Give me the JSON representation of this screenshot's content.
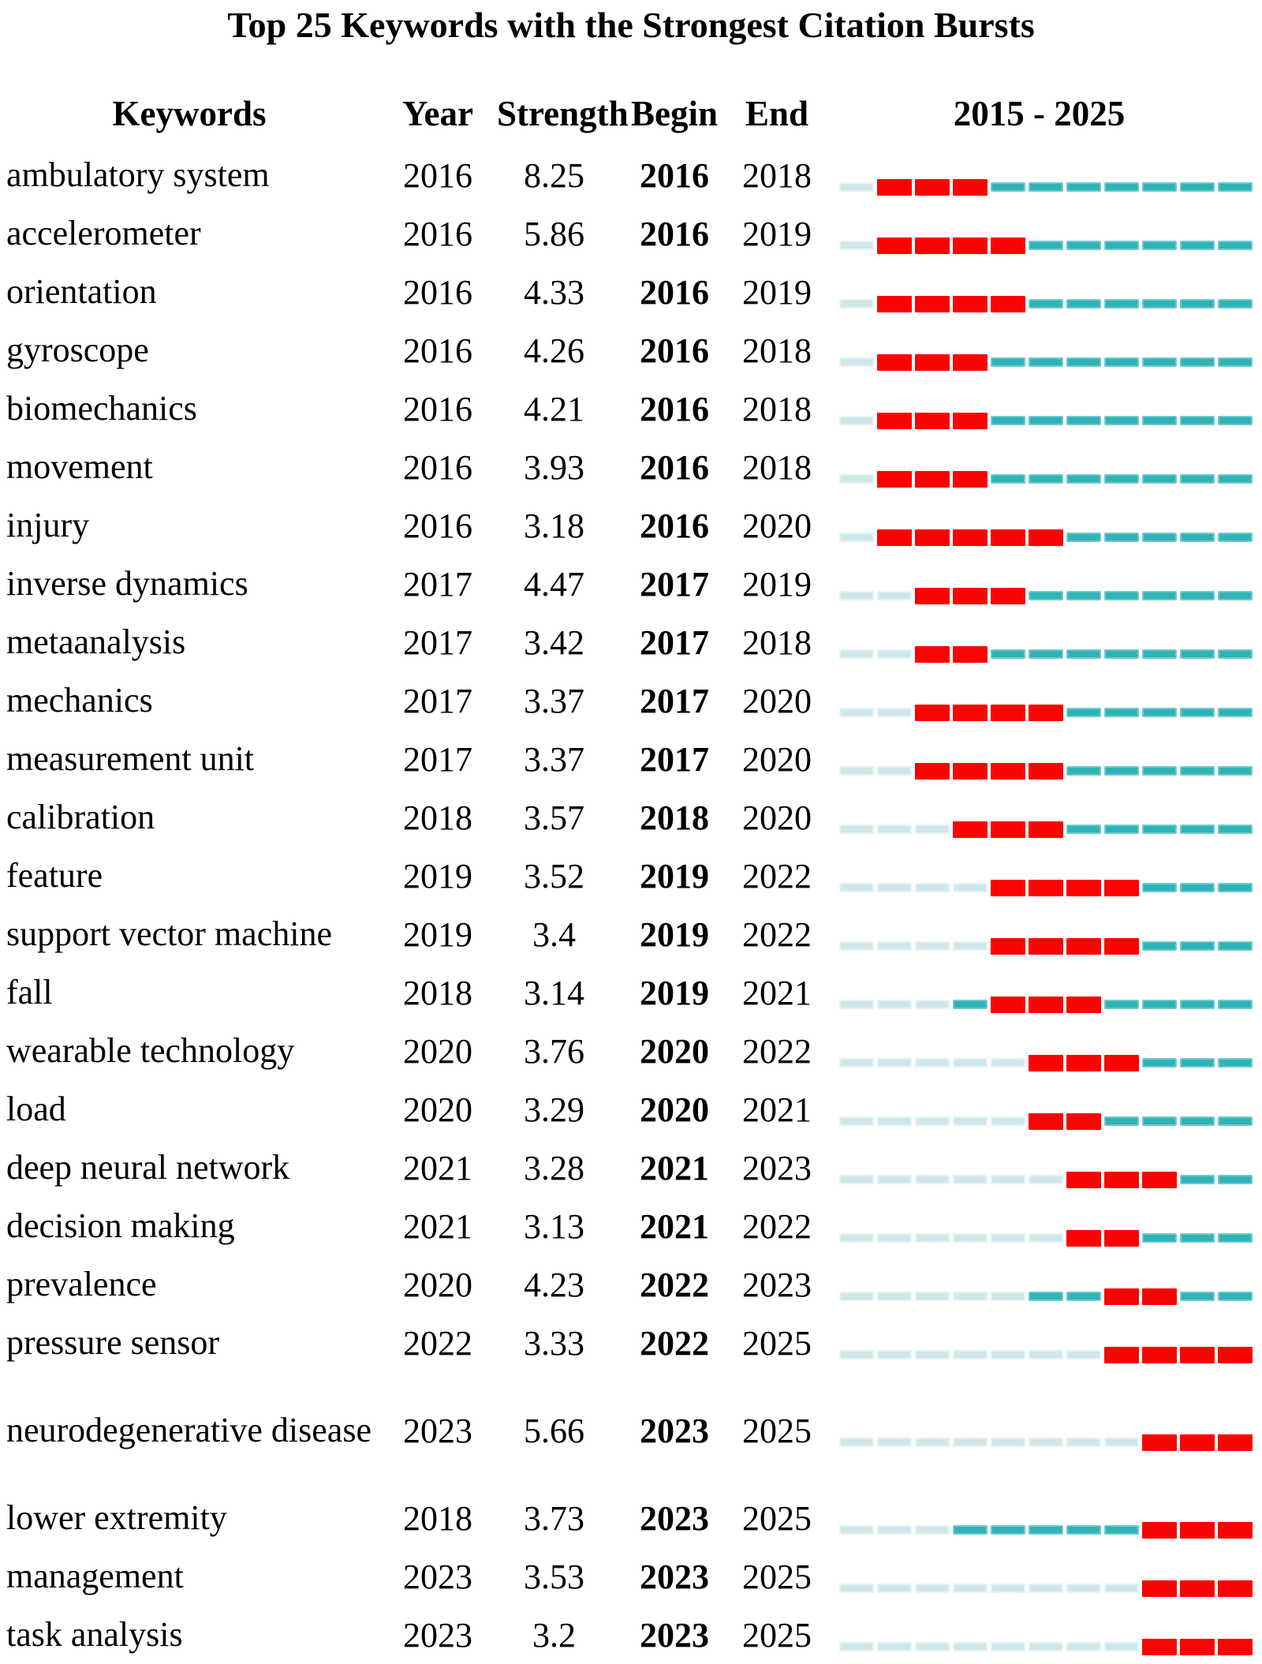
{
  "title": "Top 25 Keywords with the Strongest Citation Bursts",
  "header": {
    "keywords": "Keywords",
    "year": "Year",
    "strength": "Strength",
    "begin": "Begin",
    "end": "End",
    "timeline": "2015 - 2025"
  },
  "colors": {
    "burst_red": "#fa0300",
    "active_teal": "#2fb3b7",
    "inactive_pale": "#cfe7e9"
  },
  "chart_data": {
    "type": "table",
    "title": "Top 25 Keywords with the Strongest Citation Bursts",
    "columns": [
      "Keywords",
      "Year",
      "Strength",
      "Begin",
      "End",
      "2015 - 2025"
    ],
    "timeline_range": [
      2015,
      2025
    ],
    "legend_note": "pale = before first appearance year, teal = active, red = burst interval (Begin-End)",
    "rows": [
      {
        "keyword": "ambulatory system",
        "year": 2016,
        "strength": 8.25,
        "begin": 2016,
        "end": 2018
      },
      {
        "keyword": "accelerometer",
        "year": 2016,
        "strength": 5.86,
        "begin": 2016,
        "end": 2019
      },
      {
        "keyword": "orientation",
        "year": 2016,
        "strength": 4.33,
        "begin": 2016,
        "end": 2019
      },
      {
        "keyword": "gyroscope",
        "year": 2016,
        "strength": 4.26,
        "begin": 2016,
        "end": 2018
      },
      {
        "keyword": "biomechanics",
        "year": 2016,
        "strength": 4.21,
        "begin": 2016,
        "end": 2018
      },
      {
        "keyword": "movement",
        "year": 2016,
        "strength": 3.93,
        "begin": 2016,
        "end": 2018
      },
      {
        "keyword": "injury",
        "year": 2016,
        "strength": 3.18,
        "begin": 2016,
        "end": 2020
      },
      {
        "keyword": "inverse dynamics",
        "year": 2017,
        "strength": 4.47,
        "begin": 2017,
        "end": 2019
      },
      {
        "keyword": "metaanalysis",
        "year": 2017,
        "strength": 3.42,
        "begin": 2017,
        "end": 2018
      },
      {
        "keyword": "mechanics",
        "year": 2017,
        "strength": 3.37,
        "begin": 2017,
        "end": 2020
      },
      {
        "keyword": "measurement unit",
        "year": 2017,
        "strength": 3.37,
        "begin": 2017,
        "end": 2020
      },
      {
        "keyword": "calibration",
        "year": 2018,
        "strength": 3.57,
        "begin": 2018,
        "end": 2020
      },
      {
        "keyword": "feature",
        "year": 2019,
        "strength": 3.52,
        "begin": 2019,
        "end": 2022
      },
      {
        "keyword": "support vector machine",
        "year": 2019,
        "strength": 3.4,
        "begin": 2019,
        "end": 2022
      },
      {
        "keyword": "fall",
        "year": 2018,
        "strength": 3.14,
        "begin": 2019,
        "end": 2021
      },
      {
        "keyword": "wearable technology",
        "year": 2020,
        "strength": 3.76,
        "begin": 2020,
        "end": 2022
      },
      {
        "keyword": "load",
        "year": 2020,
        "strength": 3.29,
        "begin": 2020,
        "end": 2021
      },
      {
        "keyword": "deep neural network",
        "year": 2021,
        "strength": 3.28,
        "begin": 2021,
        "end": 2023
      },
      {
        "keyword": "decision making",
        "year": 2021,
        "strength": 3.13,
        "begin": 2021,
        "end": 2022
      },
      {
        "keyword": "prevalence",
        "year": 2020,
        "strength": 4.23,
        "begin": 2022,
        "end": 2023
      },
      {
        "keyword": "pressure sensor",
        "year": 2022,
        "strength": 3.33,
        "begin": 2022,
        "end": 2025
      },
      {
        "keyword": "neurodegenerative disease",
        "year": 2023,
        "strength": 5.66,
        "begin": 2023,
        "end": 2025
      },
      {
        "keyword": "lower extremity",
        "year": 2018,
        "strength": 3.73,
        "begin": 2023,
        "end": 2025
      },
      {
        "keyword": "management",
        "year": 2023,
        "strength": 3.53,
        "begin": 2023,
        "end": 2025
      },
      {
        "keyword": "task analysis",
        "year": 2023,
        "strength": 3.2,
        "begin": 2023,
        "end": 2025
      }
    ]
  }
}
